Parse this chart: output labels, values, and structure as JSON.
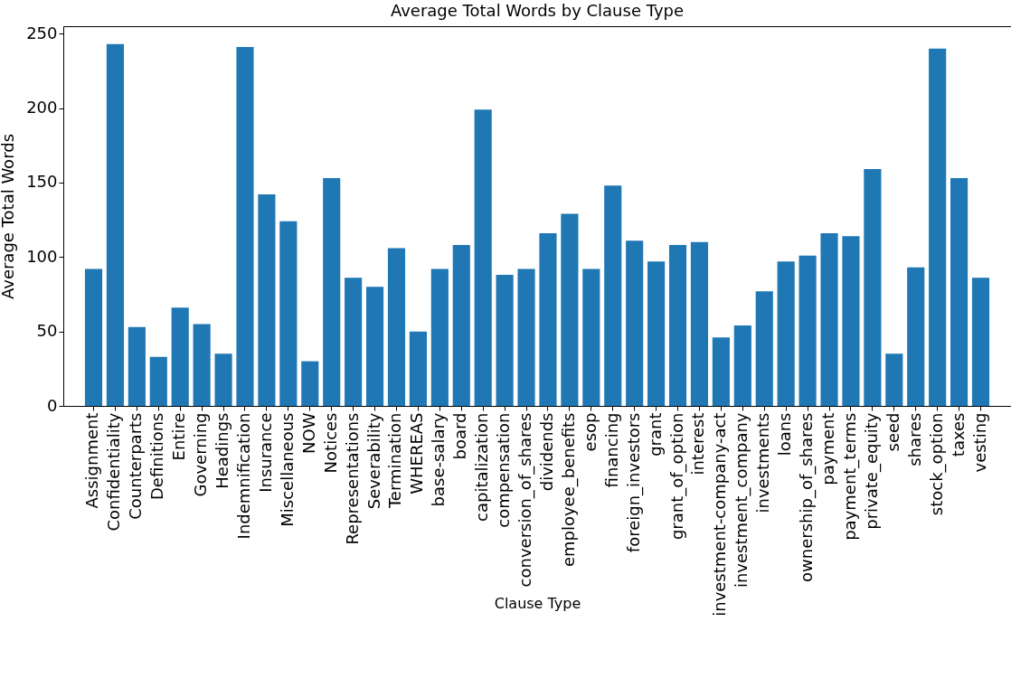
{
  "chart_data": {
    "type": "bar",
    "title": "Average Total Words by Clause Type",
    "xlabel": "Clause Type",
    "ylabel": "Average Total Words",
    "categories": [
      "Assignment",
      "Confidentiality",
      "Counterparts",
      "Definitions",
      "Entire",
      "Governing",
      "Headings",
      "Indemnification",
      "Insurance",
      "Miscellaneous",
      "NOW",
      "Notices",
      "Representations",
      "Severability",
      "Termination",
      "WHEREAS",
      "base-salary",
      "board",
      "capitalization",
      "compensation",
      "conversion_of_shares",
      "dividends",
      "employee_benefits",
      "esop",
      "financing",
      "foreign_investors",
      "grant",
      "grant_of_option",
      "interest",
      "investment-company-act",
      "investment_company",
      "investments",
      "loans",
      "ownership_of_shares",
      "payment",
      "payment_terms",
      "private_equity",
      "seed",
      "shares",
      "stock_option",
      "taxes",
      "vesting"
    ],
    "values": [
      92,
      243,
      53,
      33,
      66,
      55,
      35,
      241,
      142,
      124,
      30,
      153,
      86,
      80,
      106,
      50,
      92,
      108,
      199,
      88,
      92,
      116,
      129,
      92,
      148,
      111,
      97,
      108,
      110,
      46,
      54,
      77,
      97,
      101,
      116,
      114,
      159,
      35,
      93,
      240,
      153,
      86
    ],
    "color": "#1f77b4",
    "ylim": [
      0,
      255
    ],
    "yticks": [
      0,
      50,
      100,
      150,
      200,
      250
    ],
    "grid": false
  }
}
